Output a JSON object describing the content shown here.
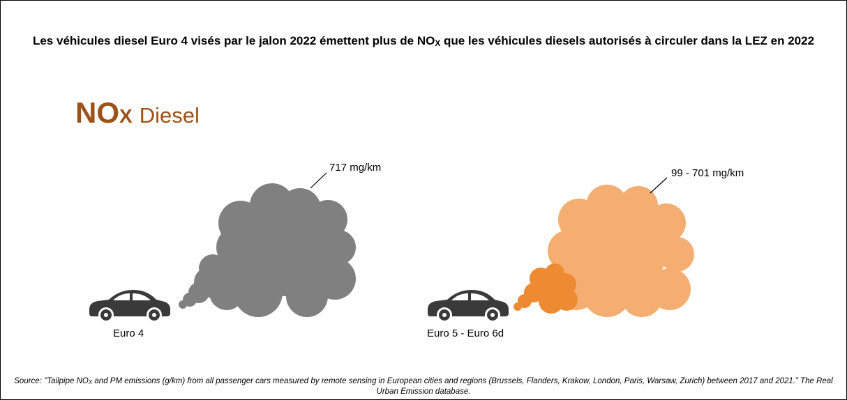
{
  "title": {
    "before": "Les véhicules diesel Euro 4 visés par le jalon 2022 émettent plus de NO",
    "sub": "X",
    "after": " que les véhicules diesels autorisés à circuler dans la LEZ en 2022"
  },
  "heading": {
    "main": "NO",
    "sub": "X",
    "suffix": "Diesel"
  },
  "vehicles": [
    {
      "emission": "717 mg/km",
      "label": "Euro 4"
    },
    {
      "emission": "99 - 701 mg/km",
      "label": "Euro 5 - Euro 6d"
    }
  ],
  "source": {
    "before": "Source: \"Tailpipe NO",
    "sub": "X",
    "after": " and PM emissions (g/km) from all passenger cars measured by remote sensing in European cities and regions (Brussels, Flanders, Krakow, London, Paris, Warsaw, Zurich) between 2017 and 2021.” The Real Urban Emission database."
  }
}
